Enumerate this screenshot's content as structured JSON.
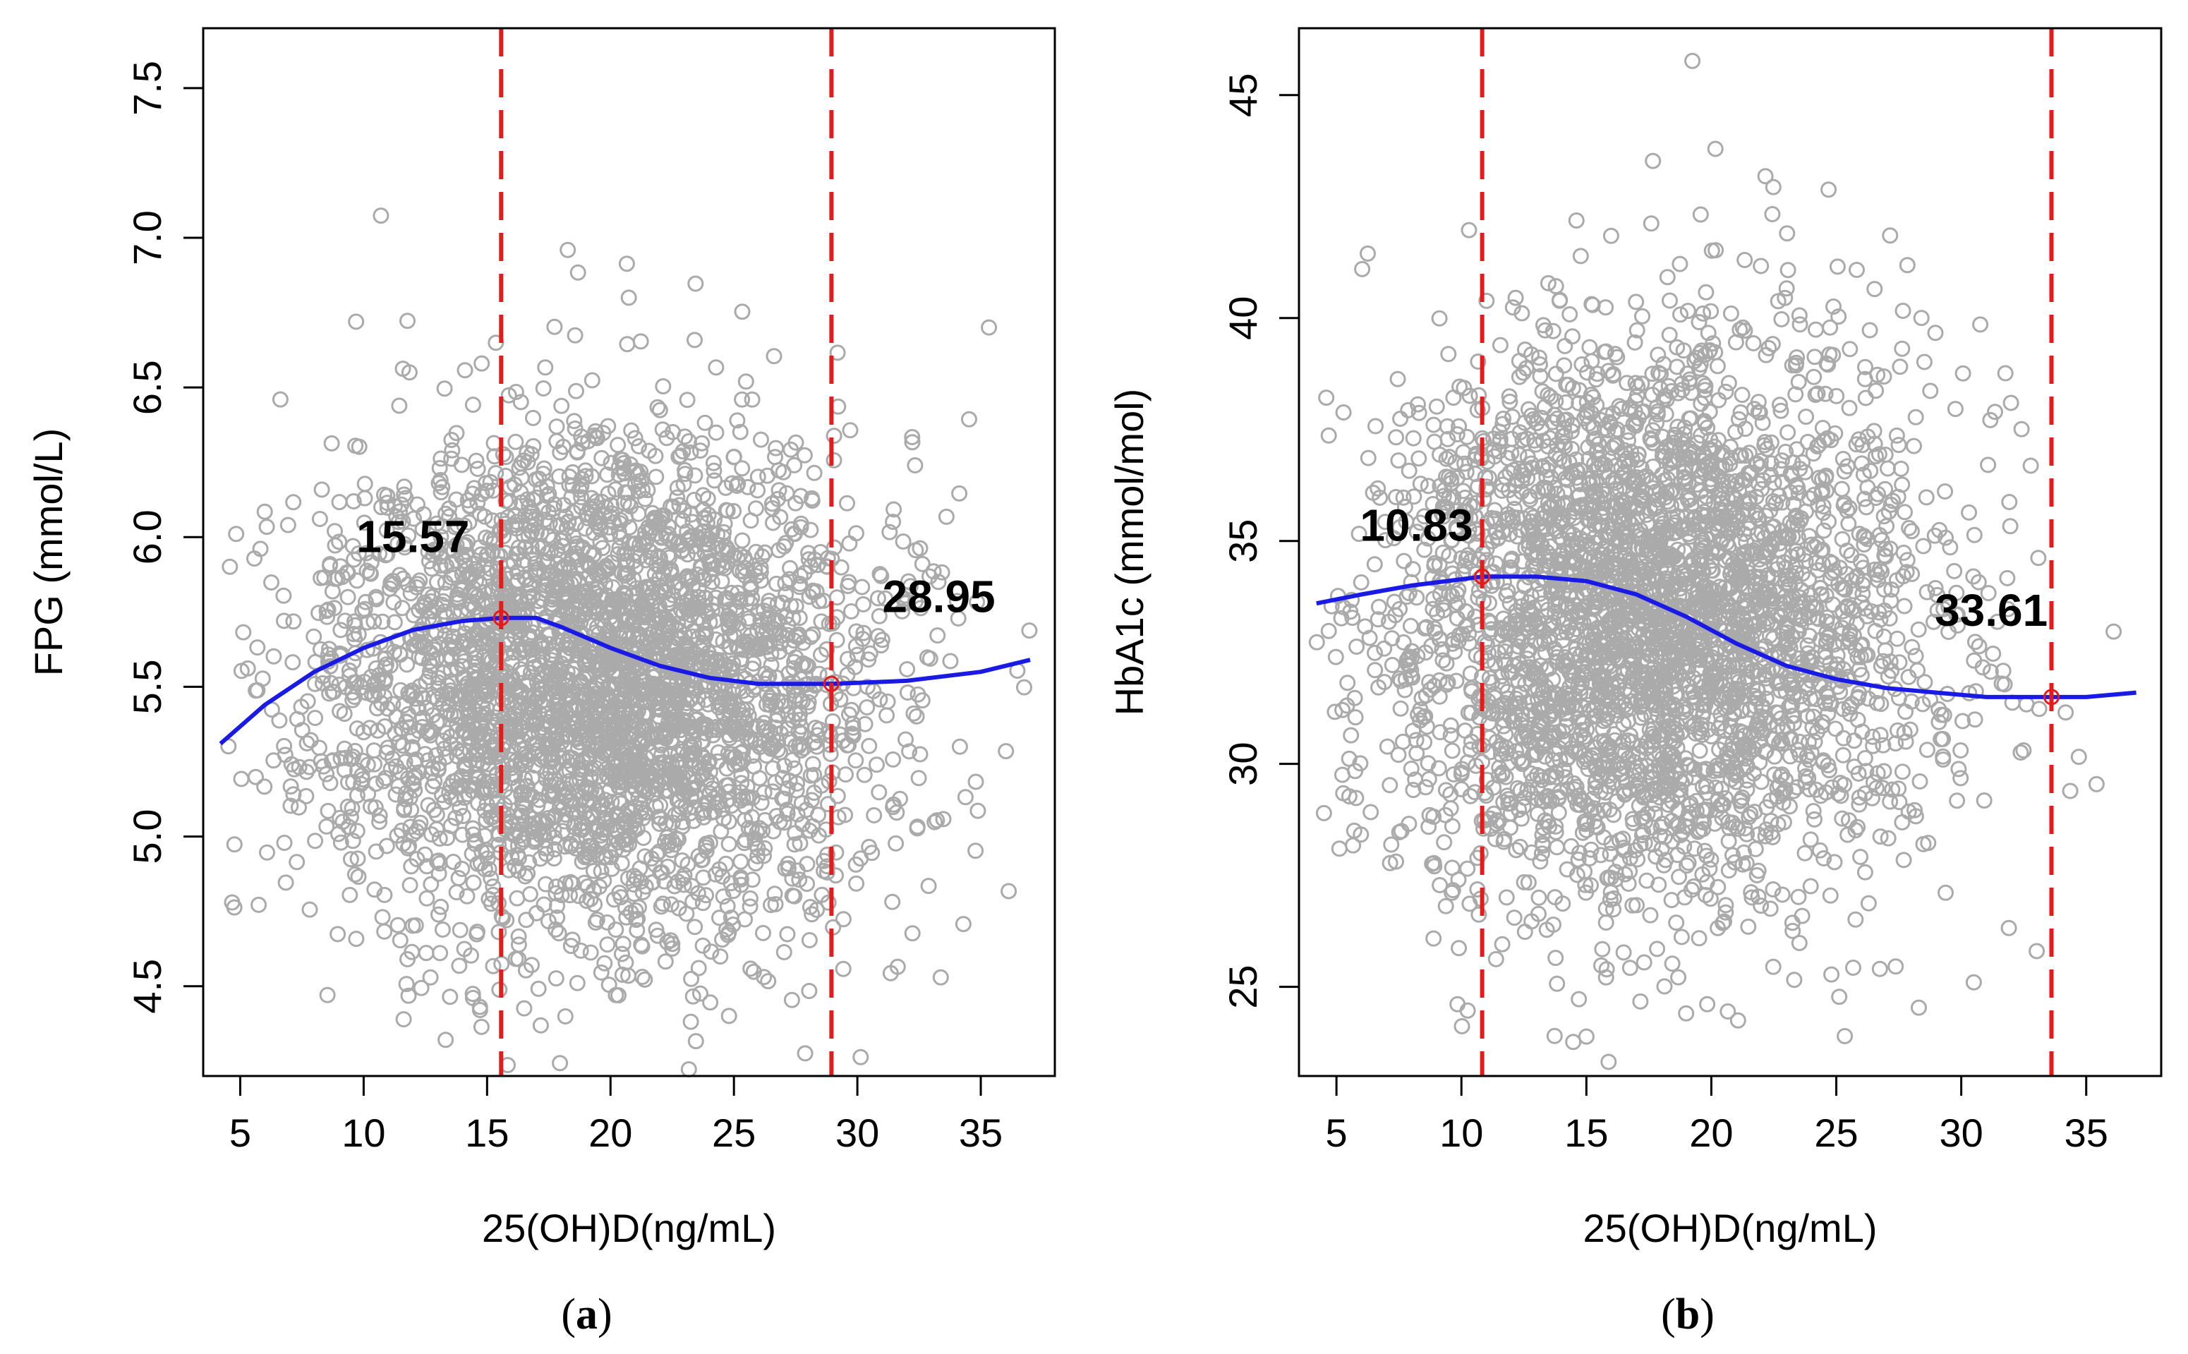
{
  "chart_data": [
    {
      "type": "scatter",
      "panel_label": "a",
      "xlabel": "25(OH)D(ng/mL)",
      "ylabel": "FPG (mmol/L)",
      "xlim": [
        3.5,
        38
      ],
      "ylim": [
        4.2,
        7.7
      ],
      "xticks": [
        5,
        10,
        15,
        20,
        25,
        30,
        35
      ],
      "yticks": [
        "4.5",
        "5.0",
        "5.5",
        "6.0",
        "6.5",
        "7.0",
        "7.5"
      ],
      "grid": false,
      "scatter": {
        "n": 3600,
        "x_center": 19.5,
        "x_sd": 5.5,
        "x_min": 4.2,
        "x_max": 37,
        "y_center": 5.5,
        "y_sd": 0.42,
        "seed": 11,
        "color": "#aaaaaa"
      },
      "series": [
        {
          "x": [
            4.2,
            6,
            8,
            10,
            12,
            14,
            15.57,
            17,
            18,
            20,
            22,
            24,
            26,
            28.95,
            32,
            35,
            37
          ],
          "y": [
            5.31,
            5.44,
            5.55,
            5.63,
            5.69,
            5.72,
            5.73,
            5.73,
            5.7,
            5.63,
            5.57,
            5.53,
            5.51,
            5.51,
            5.52,
            5.55,
            5.59
          ],
          "color": "#1a1ae6"
        }
      ],
      "thresholds": [
        {
          "x": 15.57,
          "y": 5.73,
          "label": "15.57",
          "label_x": 12,
          "label_y": 5.95
        },
        {
          "x": 28.95,
          "y": 5.51,
          "label": "28.95",
          "label_x": 33.3,
          "label_y": 5.75
        }
      ],
      "accent_color": "#e61a1a",
      "curve_color": "#1a1ae6",
      "point_color": "#aaaaaa"
    },
    {
      "type": "scatter",
      "panel_label": "b",
      "xlabel": "25(OH)D(ng/mL)",
      "ylabel": "HbA1c (mmol/mol)",
      "xlim": [
        3.5,
        38
      ],
      "ylim": [
        23,
        46.5
      ],
      "xticks": [
        5,
        10,
        15,
        20,
        25,
        30,
        35
      ],
      "yticks": [
        "25",
        "30",
        "35",
        "40",
        "45"
      ],
      "grid": false,
      "scatter": {
        "n": 3600,
        "x_center": 17.5,
        "x_sd": 5.5,
        "x_min": 4.2,
        "x_max": 37,
        "y_center": 33.2,
        "y_sd": 3.1,
        "seed": 29,
        "color": "#aaaaaa"
      },
      "series": [
        {
          "x": [
            4.2,
            6,
            8,
            10.83,
            13,
            15,
            17,
            19,
            21,
            23,
            25,
            27,
            29,
            31,
            33.61,
            35,
            37
          ],
          "y": [
            33.6,
            33.8,
            34.0,
            34.2,
            34.2,
            34.1,
            33.8,
            33.3,
            32.7,
            32.2,
            31.9,
            31.7,
            31.6,
            31.5,
            31.5,
            31.5,
            31.6
          ],
          "color": "#1a1ae6"
        }
      ],
      "thresholds": [
        {
          "x": 10.83,
          "y": 34.2,
          "label": "10.83",
          "label_x": 8.2,
          "label_y": 35.0
        },
        {
          "x": 33.61,
          "y": 31.5,
          "label": "33.61",
          "label_x": 31.2,
          "label_y": 33.1
        }
      ],
      "accent_color": "#e61a1a",
      "curve_color": "#1a1ae6",
      "point_color": "#aaaaaa"
    }
  ]
}
